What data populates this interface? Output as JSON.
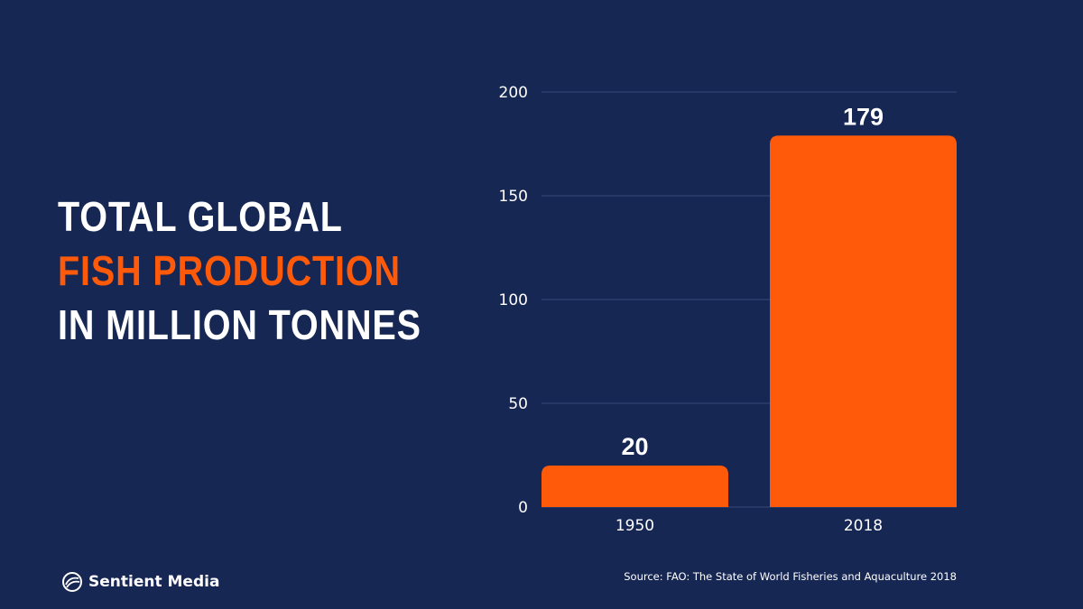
{
  "title": {
    "line1": "TOTAL GLOBAL",
    "line2": "FISH PRODUCTION",
    "line3": "IN MILLION TONNES"
  },
  "chart_data": {
    "type": "bar",
    "categories": [
      "1950",
      "2018"
    ],
    "values": [
      20,
      179
    ],
    "value_labels": [
      "20",
      "179"
    ],
    "title": "Total global fish production in million tonnes",
    "xlabel": "",
    "ylabel": "",
    "ylim": [
      0,
      200
    ],
    "yticks": [
      0,
      50,
      100,
      150,
      200
    ],
    "grid": true,
    "legend": "none"
  },
  "colors": {
    "background": "#172754",
    "bar": "#ff5a09",
    "accent_text": "#ff5a09",
    "text": "#ffffff",
    "gridline": "#3a4a78"
  },
  "footer": {
    "brand_name": "Sentient Media",
    "brand_icon": "sentient-media-logo-icon",
    "source": "Source: FAO: The State of World Fisheries and Aquaculture 2018"
  }
}
